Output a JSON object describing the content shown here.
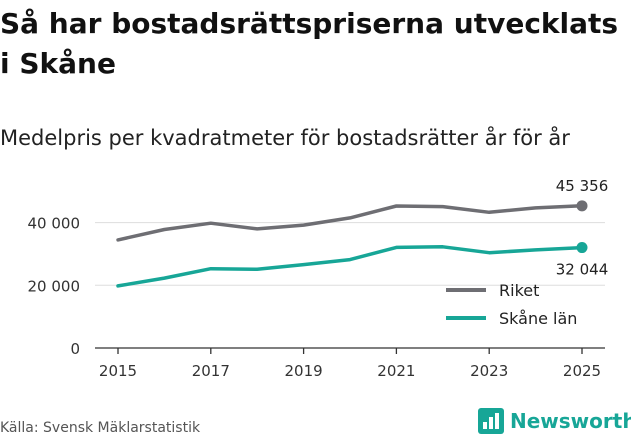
{
  "title": "Så har bostadsrättspriserna utvecklats i Skåne",
  "subtitle": "Medelpris per kvadratmeter för bostadsrätter år för år",
  "source": "Källa: Svensk Mäklarstatistik",
  "brand": "Newsworthy",
  "chart_data": {
    "type": "line",
    "x": [
      2015,
      2016,
      2017,
      2018,
      2019,
      2020,
      2021,
      2022,
      2023,
      2024,
      2025
    ],
    "series": [
      {
        "name": "Riket",
        "color": "#6e6e73",
        "values": [
          34500,
          37800,
          39800,
          38000,
          39200,
          41500,
          45300,
          45100,
          43300,
          44700,
          45356
        ]
      },
      {
        "name": "Skåne län",
        "color": "#17a697",
        "values": [
          19800,
          22300,
          25300,
          25100,
          26600,
          28200,
          32100,
          32300,
          30400,
          31300,
          32044
        ]
      }
    ],
    "xticks": [
      "2015",
      "2017",
      "2019",
      "2021",
      "2023",
      "2025"
    ],
    "yticks": [
      0,
      20000,
      40000
    ],
    "ytick_labels": [
      "0",
      "20 000",
      "40 000"
    ],
    "ylim": [
      0,
      52000
    ],
    "end_labels": {
      "Riket": "45 356",
      "Skåne län": "32 044"
    },
    "legend_position": "bottom-right",
    "grid": true
  }
}
